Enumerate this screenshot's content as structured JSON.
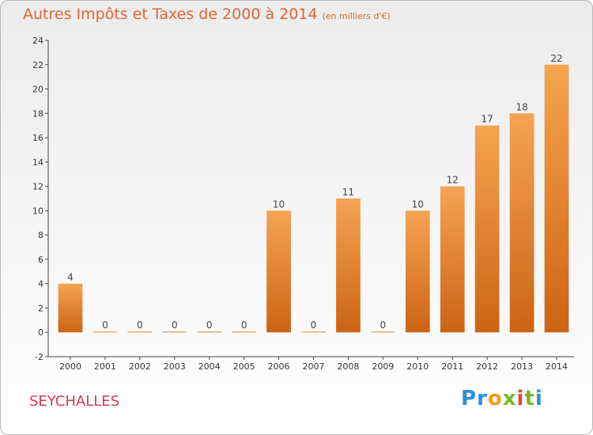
{
  "title": "Autres Impôts et Taxes de 2000 à 2014",
  "subtitle": "(en milliers d'€)",
  "commune": "SEYCHALLES",
  "logo": {
    "letters": [
      "P",
      "r",
      "o",
      "x",
      "i",
      "t",
      "i"
    ],
    "colors": [
      "#2e8ed8",
      "#2e8ed8",
      "#f39b1b",
      "#78b82a",
      "#e24b3b",
      "#78b82a",
      "#2e8ed8"
    ]
  },
  "colors": {
    "bar_top": "#f5a452",
    "bar_bottom": "#cc6414",
    "title": "#e06530",
    "commune": "#d43a52"
  },
  "chart_data": {
    "type": "bar",
    "categories": [
      "2000",
      "2001",
      "2002",
      "2003",
      "2004",
      "2005",
      "2006",
      "2007",
      "2008",
      "2009",
      "2010",
      "2011",
      "2012",
      "2013",
      "2014"
    ],
    "values": [
      4,
      0,
      0,
      0,
      0,
      0,
      10,
      0,
      11,
      0,
      10,
      12,
      17,
      18,
      22
    ],
    "title": "Autres Impôts et Taxes de 2000 à 2014",
    "subtitle": "(en milliers d'€)",
    "ylim": [
      -2,
      24
    ],
    "yticks": [
      -2,
      0,
      2,
      4,
      6,
      8,
      10,
      12,
      14,
      16,
      18,
      20,
      22,
      24
    ],
    "grid": false,
    "data_labels": true
  }
}
